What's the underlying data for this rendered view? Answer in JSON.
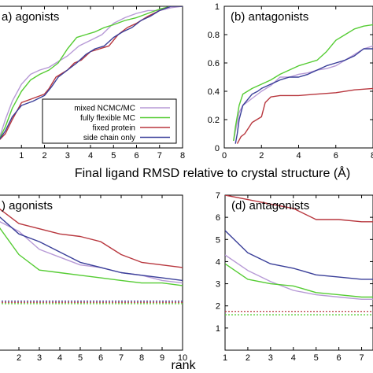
{
  "colors": {
    "mixed NCMC/MC": "#b79ad6",
    "fully flexible MC": "#55cc33",
    "fixed protein": "#b8373e",
    "side chain only": "#3a3f99"
  },
  "xlabel_top": "Final ligand RMSD relative to crystal structure (Å)",
  "xlabel_bottom": "rank",
  "chart_data": [
    {
      "type": "line",
      "panel_label": "a) agonists",
      "xlim": [
        0,
        8
      ],
      "ylim": [
        0,
        1
      ],
      "xticks": [
        {
          "value": 1,
          "label": "1"
        },
        {
          "value": 2,
          "label": "2"
        },
        {
          "value": 3,
          "label": "3"
        },
        {
          "value": 4,
          "label": "4"
        },
        {
          "value": 5,
          "label": "5"
        },
        {
          "value": 6,
          "label": "6"
        },
        {
          "value": 7,
          "label": "7"
        },
        {
          "value": 8,
          "label": "8"
        }
      ],
      "yticks": [],
      "legend": {
        "position": "bottom-right",
        "entries": [
          "mixed NCMC/MC",
          "fully flexible MC",
          "fixed protein",
          "side chain only"
        ]
      },
      "series": [
        {
          "name": "mixed NCMC/MC",
          "x": [
            0,
            0.3,
            0.6,
            1.0,
            1.4,
            1.8,
            2.2,
            2.5,
            3.0,
            3.5,
            4.0,
            4.5,
            5.0,
            5.5,
            6.0,
            6.5,
            7.0,
            7.5,
            8.0
          ],
          "y": [
            0.05,
            0.2,
            0.33,
            0.45,
            0.52,
            0.55,
            0.57,
            0.6,
            0.65,
            0.72,
            0.76,
            0.8,
            0.88,
            0.92,
            0.95,
            0.97,
            0.97,
            0.99,
            1.0
          ]
        },
        {
          "name": "fully flexible MC",
          "x": [
            0,
            0.3,
            0.6,
            1.0,
            1.4,
            1.8,
            2.2,
            2.6,
            3.0,
            3.4,
            3.8,
            4.2,
            4.6,
            5.0,
            5.5,
            6.0,
            6.5,
            7.0,
            7.5,
            8.0
          ],
          "y": [
            0.05,
            0.15,
            0.28,
            0.4,
            0.48,
            0.52,
            0.55,
            0.6,
            0.7,
            0.78,
            0.8,
            0.82,
            0.85,
            0.87,
            0.9,
            0.92,
            0.95,
            0.98,
            1.0,
            1.0
          ]
        },
        {
          "name": "fixed protein",
          "x": [
            0,
            0.3,
            0.6,
            1.0,
            1.5,
            2.0,
            2.2,
            2.5,
            3.0,
            3.3,
            3.6,
            4.0,
            4.4,
            4.8,
            5.2,
            5.6,
            6.0,
            6.5,
            7.0,
            7.5,
            8.0
          ],
          "y": [
            0.05,
            0.1,
            0.2,
            0.32,
            0.35,
            0.38,
            0.42,
            0.5,
            0.55,
            0.6,
            0.62,
            0.68,
            0.7,
            0.72,
            0.8,
            0.85,
            0.88,
            0.93,
            0.97,
            1.0,
            1.0
          ]
        },
        {
          "name": "side chain only",
          "x": [
            0,
            0.3,
            0.6,
            1.0,
            1.5,
            2.0,
            2.3,
            2.6,
            3.0,
            3.4,
            3.8,
            4.2,
            4.6,
            5.0,
            5.4,
            5.8,
            6.2,
            6.6,
            7.0,
            7.5,
            8.0
          ],
          "y": [
            0.05,
            0.12,
            0.22,
            0.3,
            0.33,
            0.37,
            0.43,
            0.5,
            0.55,
            0.6,
            0.66,
            0.7,
            0.72,
            0.78,
            0.82,
            0.85,
            0.9,
            0.93,
            0.97,
            1.0,
            1.0
          ]
        }
      ]
    },
    {
      "type": "line",
      "panel_label": "(b) antagonists",
      "xlim": [
        0,
        8
      ],
      "ylim": [
        0,
        1
      ],
      "xticks": [
        {
          "value": 0,
          "label": "0"
        },
        {
          "value": 2,
          "label": "2"
        },
        {
          "value": 4,
          "label": "4"
        },
        {
          "value": 6,
          "label": "6"
        },
        {
          "value": 8,
          "label": "8"
        }
      ],
      "yticks": [
        {
          "value": 0,
          "label": "0"
        },
        {
          "value": 0.2,
          "label": "0.2"
        },
        {
          "value": 0.4,
          "label": "0.4"
        },
        {
          "value": 0.6,
          "label": "0.6"
        },
        {
          "value": 0.8,
          "label": "0.8"
        },
        {
          "value": 1,
          "label": "1"
        }
      ],
      "series": [
        {
          "name": "mixed NCMC/MC",
          "x": [
            0.5,
            0.6,
            0.8,
            1.0,
            1.5,
            2.0,
            2.5,
            3.0,
            3.5,
            4.0,
            4.5,
            5.0,
            5.5,
            6.0,
            6.5,
            7.0,
            7.5,
            8.0
          ],
          "y": [
            0.05,
            0.12,
            0.25,
            0.3,
            0.35,
            0.4,
            0.44,
            0.5,
            0.5,
            0.52,
            0.53,
            0.55,
            0.56,
            0.58,
            0.62,
            0.66,
            0.7,
            0.72
          ]
        },
        {
          "name": "fully flexible MC",
          "x": [
            0.5,
            0.6,
            0.8,
            1.0,
            1.5,
            2.0,
            2.5,
            3.0,
            3.5,
            4.0,
            4.5,
            5.0,
            5.5,
            6.0,
            6.5,
            7.0,
            7.5,
            8.0
          ],
          "y": [
            0.05,
            0.15,
            0.3,
            0.38,
            0.42,
            0.45,
            0.48,
            0.52,
            0.55,
            0.58,
            0.6,
            0.62,
            0.68,
            0.76,
            0.8,
            0.84,
            0.86,
            0.87
          ]
        },
        {
          "name": "fixed protein",
          "x": [
            0.7,
            0.9,
            1.1,
            1.5,
            2.0,
            2.2,
            2.5,
            3.0,
            3.5,
            4.0,
            5.0,
            6.0,
            7.0,
            8.0
          ],
          "y": [
            0.03,
            0.08,
            0.1,
            0.18,
            0.22,
            0.32,
            0.36,
            0.37,
            0.37,
            0.37,
            0.38,
            0.39,
            0.41,
            0.42
          ]
        },
        {
          "name": "side chain only",
          "x": [
            0.6,
            0.7,
            0.8,
            1.0,
            1.5,
            1.8,
            2.0,
            2.5,
            3.0,
            3.5,
            4.0,
            4.5,
            5.0,
            5.5,
            6.0,
            6.5,
            7.0,
            7.5,
            8.0
          ],
          "y": [
            0.03,
            0.1,
            0.2,
            0.3,
            0.38,
            0.4,
            0.42,
            0.45,
            0.48,
            0.5,
            0.5,
            0.52,
            0.55,
            0.58,
            0.6,
            0.62,
            0.65,
            0.7,
            0.7
          ]
        }
      ]
    },
    {
      "type": "line",
      "panel_label": ") agonists",
      "xlim": [
        1,
        10
      ],
      "ylim": [
        0,
        6
      ],
      "xticks": [
        {
          "value": 2,
          "label": "2"
        },
        {
          "value": 3,
          "label": "3"
        },
        {
          "value": 4,
          "label": "4"
        },
        {
          "value": 5,
          "label": "5"
        },
        {
          "value": 6,
          "label": "6"
        },
        {
          "value": 7,
          "label": "7"
        },
        {
          "value": 8,
          "label": "8"
        },
        {
          "value": 9,
          "label": "9"
        },
        {
          "value": 10,
          "label": "10"
        }
      ],
      "yticks": [],
      "series": [
        {
          "name": "mixed NCMC/MC",
          "x": [
            1,
            2,
            3,
            4,
            5,
            6,
            7,
            8,
            9,
            10
          ],
          "y": [
            5.0,
            4.6,
            3.9,
            3.6,
            3.3,
            3.2,
            3.0,
            2.9,
            2.7,
            2.6
          ]
        },
        {
          "name": "fully flexible MC",
          "x": [
            1,
            2,
            3,
            4,
            5,
            6,
            7,
            8,
            9,
            10
          ],
          "y": [
            4.8,
            3.7,
            3.1,
            3.0,
            2.9,
            2.8,
            2.7,
            2.6,
            2.6,
            2.5
          ]
        },
        {
          "name": "fixed protein",
          "x": [
            1,
            2,
            3,
            4,
            5,
            6,
            7,
            8,
            9,
            10
          ],
          "y": [
            5.5,
            4.9,
            4.7,
            4.5,
            4.4,
            4.2,
            3.7,
            3.4,
            3.3,
            3.2
          ]
        },
        {
          "name": "side chain only",
          "x": [
            1,
            2,
            3,
            4,
            5,
            6,
            7,
            8,
            9,
            10
          ],
          "y": [
            5.2,
            4.5,
            4.2,
            3.8,
            3.4,
            3.2,
            3.0,
            2.9,
            2.8,
            2.7
          ]
        }
      ],
      "reference_lines": [
        {
          "name": "side chain only",
          "y": 1.9
        },
        {
          "name": "fixed protein",
          "y": 1.85
        },
        {
          "name": "fully flexible MC",
          "y": 1.8
        }
      ]
    },
    {
      "type": "line",
      "panel_label": "(d) antagonists",
      "xlim": [
        1,
        7.5
      ],
      "ylim": [
        0,
        7
      ],
      "xticks": [
        {
          "value": 1,
          "label": "1"
        },
        {
          "value": 2,
          "label": "2"
        },
        {
          "value": 3,
          "label": "3"
        },
        {
          "value": 4,
          "label": "4"
        },
        {
          "value": 5,
          "label": "5"
        },
        {
          "value": 6,
          "label": "6"
        },
        {
          "value": 7,
          "label": "7"
        }
      ],
      "yticks": [
        {
          "value": 1,
          "label": "1"
        },
        {
          "value": 2,
          "label": "2"
        },
        {
          "value": 3,
          "label": "3"
        },
        {
          "value": 4,
          "label": "4"
        },
        {
          "value": 5,
          "label": "5"
        },
        {
          "value": 6,
          "label": "6"
        },
        {
          "value": 7,
          "label": "7"
        }
      ],
      "series": [
        {
          "name": "mixed NCMC/MC",
          "x": [
            1,
            2,
            3,
            4,
            5,
            6,
            7,
            7.5
          ],
          "y": [
            4.3,
            3.6,
            3.1,
            2.7,
            2.5,
            2.4,
            2.3,
            2.3
          ]
        },
        {
          "name": "fully flexible MC",
          "x": [
            1,
            2,
            3,
            4,
            5,
            6,
            7,
            7.5
          ],
          "y": [
            3.9,
            3.2,
            3.0,
            2.9,
            2.6,
            2.5,
            2.4,
            2.4
          ]
        },
        {
          "name": "fixed protein",
          "x": [
            1,
            2,
            3,
            4,
            5,
            6,
            7,
            7.5
          ],
          "y": [
            7.0,
            6.8,
            6.6,
            6.4,
            5.9,
            5.9,
            5.8,
            5.8
          ]
        },
        {
          "name": "side chain only",
          "x": [
            1,
            2,
            3,
            4,
            5,
            6,
            7,
            7.5
          ],
          "y": [
            5.4,
            4.4,
            3.9,
            3.7,
            3.4,
            3.3,
            3.2,
            3.2
          ]
        }
      ],
      "reference_lines": [
        {
          "name": "fixed protein",
          "y": 1.75
        },
        {
          "name": "fully flexible MC",
          "y": 1.6
        }
      ]
    }
  ]
}
